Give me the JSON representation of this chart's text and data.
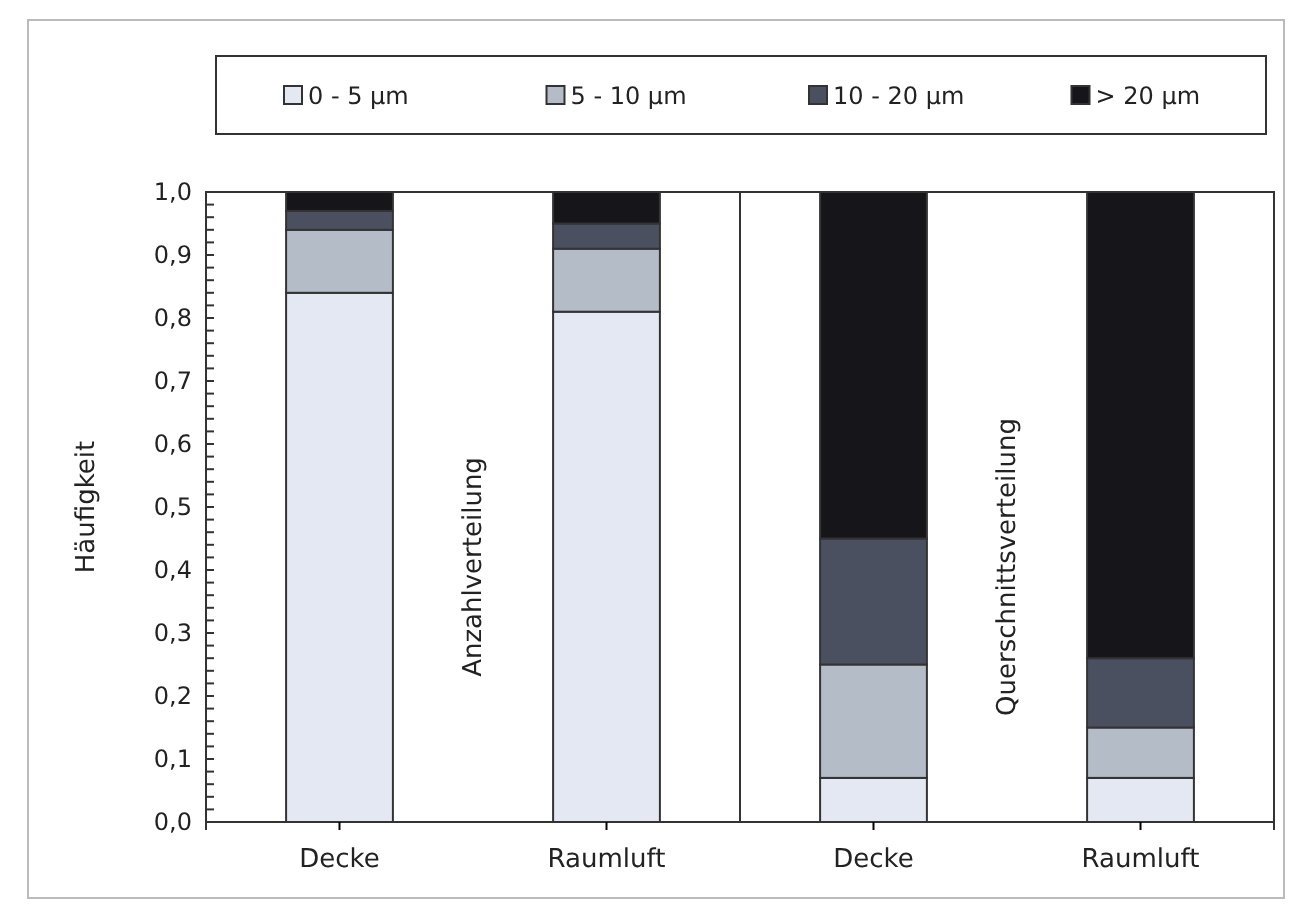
{
  "chart_data": {
    "type": "bar",
    "stacked": true,
    "categories": [
      "Decke",
      "Raumluft",
      "Decke",
      "Raumluft"
    ],
    "series": [
      {
        "name": "0 - 5 µm",
        "color": "#e4e8f2",
        "values": [
          0.84,
          0.81,
          0.07,
          0.07
        ]
      },
      {
        "name": "5 - 10 µm",
        "color": "#b4bcc8",
        "values": [
          0.1,
          0.1,
          0.18,
          0.08
        ]
      },
      {
        "name": "10 - 20 µm",
        "color": "#4a5060",
        "values": [
          0.03,
          0.04,
          0.2,
          0.11
        ]
      },
      {
        "name": "> 20 µm",
        "color": "#15151a",
        "values": [
          0.03,
          0.05,
          0.55,
          0.74
        ]
      }
    ],
    "ylabel": "Häufigkeit",
    "ylim": [
      0,
      1
    ],
    "yticks": [
      {
        "value": 0,
        "label": "0,0"
      },
      {
        "value": 0.1,
        "label": "0,1"
      },
      {
        "value": 0.2,
        "label": "0,2"
      },
      {
        "value": 0.3,
        "label": "0,3"
      },
      {
        "value": 0.4,
        "label": "0,4"
      },
      {
        "value": 0.5,
        "label": "0,5"
      },
      {
        "value": 0.6,
        "label": "0,6"
      },
      {
        "value": 0.7,
        "label": "0,7"
      },
      {
        "value": 0.8,
        "label": "0,8"
      },
      {
        "value": 0.9,
        "label": "0,9"
      },
      {
        "value": 1,
        "label": "1,0"
      }
    ],
    "annotations": [
      "Anzahlverteilung",
      "Querschnittsverteilung"
    ],
    "grid": false,
    "legend": "top"
  }
}
